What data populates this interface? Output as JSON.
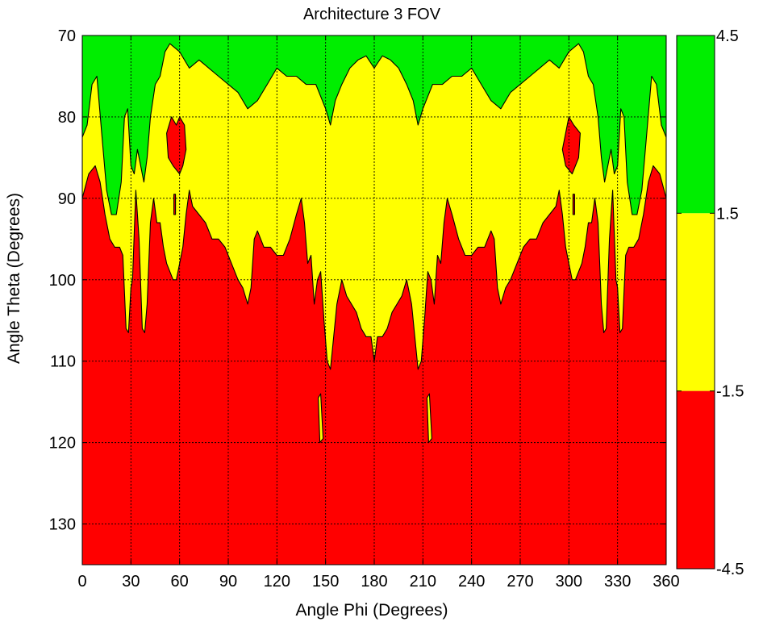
{
  "chart_data": {
    "type": "filled-contour",
    "title": "Architecture 3 FOV",
    "xlabel": "Angle Phi (Degrees)",
    "ylabel": "Angle Theta (Degrees)",
    "xlim": [
      0,
      360
    ],
    "ylim": [
      70,
      135
    ],
    "y_reversed": true,
    "x_ticks": [
      0,
      30,
      60,
      90,
      120,
      150,
      180,
      210,
      240,
      270,
      300,
      330,
      360
    ],
    "y_ticks": [
      70,
      80,
      90,
      100,
      110,
      120,
      130
    ],
    "grid": true,
    "colors": {
      "high": "#00ee00",
      "mid": "#ffff00",
      "low": "#ff0000",
      "edge": "#000000"
    },
    "levels": [
      {
        "range": [
          1.5,
          4.5
        ],
        "color": "#00ee00"
      },
      {
        "range": [
          -1.5,
          1.5
        ],
        "color": "#ffff00"
      },
      {
        "range": [
          -4.5,
          -1.5
        ],
        "color": "#ff0000"
      }
    ],
    "colorbar": {
      "ticks": [
        4.5,
        1.5,
        -1.5,
        -4.5
      ],
      "range": [
        -4.5,
        4.5
      ]
    },
    "boundaries": {
      "green_yellow": [
        [
          0,
          82.5
        ],
        [
          3,
          81
        ],
        [
          6,
          76
        ],
        [
          9,
          75
        ],
        [
          12,
          82
        ],
        [
          15,
          89
        ],
        [
          18,
          92
        ],
        [
          21,
          92
        ],
        [
          24,
          88
        ],
        [
          26,
          80
        ],
        [
          28,
          79
        ],
        [
          30,
          86
        ],
        [
          32,
          87
        ],
        [
          34,
          84
        ],
        [
          36,
          86
        ],
        [
          38,
          88
        ],
        [
          40,
          85
        ],
        [
          42,
          80
        ],
        [
          45,
          76
        ],
        [
          48,
          75
        ],
        [
          51,
          72
        ],
        [
          54,
          71
        ],
        [
          60,
          72
        ],
        [
          66,
          74
        ],
        [
          72,
          73
        ],
        [
          78,
          74
        ],
        [
          84,
          75
        ],
        [
          90,
          76
        ],
        [
          96,
          77
        ],
        [
          102,
          79
        ],
        [
          108,
          78
        ],
        [
          114,
          76
        ],
        [
          120,
          74
        ],
        [
          126,
          75
        ],
        [
          132,
          75
        ],
        [
          138,
          76
        ],
        [
          144,
          76
        ],
        [
          150,
          79
        ],
        [
          153,
          81
        ],
        [
          156,
          78
        ],
        [
          160,
          76
        ],
        [
          165,
          74
        ],
        [
          170,
          73
        ],
        [
          175,
          72.5
        ],
        [
          180,
          74
        ],
        [
          185,
          72.5
        ],
        [
          190,
          73
        ],
        [
          195,
          74
        ],
        [
          200,
          76
        ],
        [
          204,
          78
        ],
        [
          207,
          81
        ],
        [
          210,
          79
        ],
        [
          216,
          76
        ],
        [
          222,
          76
        ],
        [
          228,
          75
        ],
        [
          234,
          75
        ],
        [
          240,
          74
        ],
        [
          246,
          76
        ],
        [
          252,
          78
        ],
        [
          258,
          79
        ],
        [
          264,
          77
        ],
        [
          270,
          76
        ],
        [
          276,
          75
        ],
        [
          282,
          74
        ],
        [
          288,
          73
        ],
        [
          294,
          74
        ],
        [
          300,
          72
        ],
        [
          306,
          71
        ],
        [
          309,
          72
        ],
        [
          312,
          75
        ],
        [
          315,
          76
        ],
        [
          318,
          80
        ],
        [
          320,
          85
        ],
        [
          322,
          88
        ],
        [
          324,
          86
        ],
        [
          326,
          84
        ],
        [
          328,
          87
        ],
        [
          330,
          86
        ],
        [
          332,
          79
        ],
        [
          334,
          80
        ],
        [
          336,
          88
        ],
        [
          339,
          92
        ],
        [
          342,
          92
        ],
        [
          345,
          89
        ],
        [
          348,
          82
        ],
        [
          351,
          75
        ],
        [
          354,
          76
        ],
        [
          357,
          81
        ],
        [
          360,
          82.5
        ]
      ],
      "yellow_red": [
        [
          0,
          90
        ],
        [
          4,
          87
        ],
        [
          8,
          86
        ],
        [
          11,
          88
        ],
        [
          14,
          92
        ],
        [
          17,
          95
        ],
        [
          20,
          96
        ],
        [
          23,
          96
        ],
        [
          25,
          97
        ],
        [
          27,
          106
        ],
        [
          28.5,
          106.5
        ],
        [
          30,
          101
        ],
        [
          31,
          100
        ],
        [
          33,
          89
        ],
        [
          35,
          95
        ],
        [
          37,
          106
        ],
        [
          38.5,
          106.5
        ],
        [
          40,
          103
        ],
        [
          42,
          93
        ],
        [
          44,
          90
        ],
        [
          46,
          93
        ],
        [
          48,
          93
        ],
        [
          50,
          96
        ],
        [
          52,
          98
        ],
        [
          54,
          99
        ],
        [
          56,
          100
        ],
        [
          58,
          100
        ],
        [
          60,
          98
        ],
        [
          62,
          96
        ],
        [
          64,
          92
        ],
        [
          66,
          89
        ],
        [
          68,
          91
        ],
        [
          72,
          92
        ],
        [
          76,
          93
        ],
        [
          80,
          95
        ],
        [
          84,
          95
        ],
        [
          88,
          96
        ],
        [
          92,
          98
        ],
        [
          96,
          100
        ],
        [
          99,
          101
        ],
        [
          102,
          103
        ],
        [
          104,
          101
        ],
        [
          106,
          95
        ],
        [
          108,
          94
        ],
        [
          112,
          96
        ],
        [
          116,
          96
        ],
        [
          120,
          97
        ],
        [
          124,
          97
        ],
        [
          128,
          95
        ],
        [
          132,
          92
        ],
        [
          135,
          90
        ],
        [
          137,
          93
        ],
        [
          139,
          98
        ],
        [
          141,
          97
        ],
        [
          143,
          103
        ],
        [
          145,
          100
        ],
        [
          147,
          99
        ],
        [
          149,
          105
        ],
        [
          151,
          110
        ],
        [
          153,
          111
        ],
        [
          155,
          107
        ],
        [
          157,
          103
        ],
        [
          160,
          100
        ],
        [
          163,
          102
        ],
        [
          166,
          103
        ],
        [
          169,
          104
        ],
        [
          172,
          106
        ],
        [
          175,
          107
        ],
        [
          178,
          107
        ],
        [
          180,
          110
        ],
        [
          182,
          107
        ],
        [
          185,
          107
        ],
        [
          188,
          106
        ],
        [
          191,
          104
        ],
        [
          194,
          103
        ],
        [
          197,
          102
        ],
        [
          200,
          100
        ],
        [
          203,
          103
        ],
        [
          205,
          107
        ],
        [
          207,
          111
        ],
        [
          209,
          110
        ],
        [
          211,
          105
        ],
        [
          213,
          99
        ],
        [
          215,
          100
        ],
        [
          217,
          103
        ],
        [
          219,
          97
        ],
        [
          221,
          98
        ],
        [
          223,
          93
        ],
        [
          225,
          90
        ],
        [
          228,
          92
        ],
        [
          232,
          95
        ],
        [
          236,
          97
        ],
        [
          240,
          97
        ],
        [
          244,
          96
        ],
        [
          248,
          96
        ],
        [
          252,
          94
        ],
        [
          254,
          95
        ],
        [
          256,
          101
        ],
        [
          258,
          103
        ],
        [
          261,
          101
        ],
        [
          264,
          100
        ],
        [
          268,
          98
        ],
        [
          272,
          96
        ],
        [
          276,
          95
        ],
        [
          280,
          95
        ],
        [
          284,
          93
        ],
        [
          288,
          92
        ],
        [
          292,
          91
        ],
        [
          294,
          89
        ],
        [
          296,
          92
        ],
        [
          298,
          96
        ],
        [
          300,
          98
        ],
        [
          302,
          100
        ],
        [
          304,
          100
        ],
        [
          306,
          99
        ],
        [
          308,
          98
        ],
        [
          310,
          96
        ],
        [
          312,
          93
        ],
        [
          314,
          93
        ],
        [
          316,
          90
        ],
        [
          318,
          93
        ],
        [
          320,
          103
        ],
        [
          321.5,
          106.5
        ],
        [
          323,
          106
        ],
        [
          325,
          95
        ],
        [
          327,
          89
        ],
        [
          329,
          100
        ],
        [
          330,
          101
        ],
        [
          331.5,
          106.5
        ],
        [
          333,
          106
        ],
        [
          335,
          97
        ],
        [
          337,
          96
        ],
        [
          340,
          96
        ],
        [
          343,
          95
        ],
        [
          346,
          92
        ],
        [
          349,
          88
        ],
        [
          352,
          86
        ],
        [
          356,
          87
        ],
        [
          360,
          90
        ]
      ],
      "red_islands_in_yellow": [
        [
          [
            52,
            82
          ],
          [
            55,
            80
          ],
          [
            58,
            81
          ],
          [
            60,
            80
          ],
          [
            63,
            81
          ],
          [
            64,
            84
          ],
          [
            62,
            86
          ],
          [
            60,
            87
          ],
          [
            56,
            86
          ],
          [
            53,
            85
          ]
        ],
        [
          [
            296,
            84
          ],
          [
            298,
            82
          ],
          [
            300,
            80
          ],
          [
            303,
            81
          ],
          [
            307,
            82
          ],
          [
            306,
            85
          ],
          [
            302,
            87
          ],
          [
            298,
            86
          ]
        ],
        [
          [
            56.5,
            89.5
          ],
          [
            57.5,
            89.5
          ],
          [
            57.5,
            92
          ],
          [
            56.5,
            92
          ]
        ],
        [
          [
            302.5,
            89.5
          ],
          [
            303.5,
            89.5
          ],
          [
            303.5,
            92
          ],
          [
            302.5,
            92
          ]
        ]
      ],
      "yellow_islands_in_red": [
        [
          [
            145.5,
            114.5
          ],
          [
            147,
            114
          ],
          [
            148.5,
            119.5
          ],
          [
            146.5,
            120
          ]
        ],
        [
          [
            212.5,
            114.5
          ],
          [
            214,
            114
          ],
          [
            215.5,
            119.5
          ],
          [
            213.5,
            120
          ]
        ]
      ]
    }
  }
}
